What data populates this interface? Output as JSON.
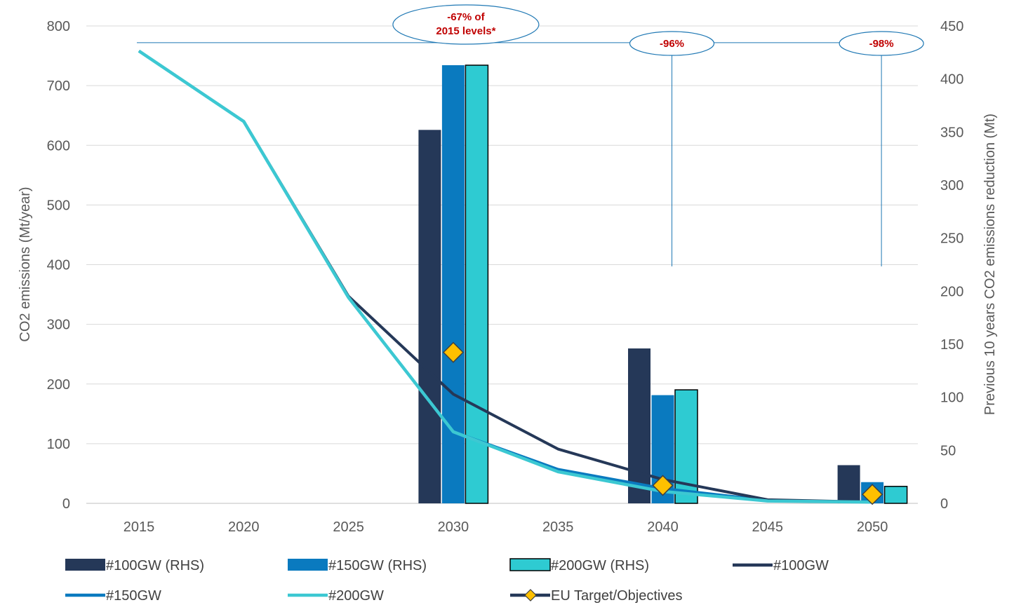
{
  "chart_data": {
    "type": "bar+line",
    "title": "",
    "x": [
      2015,
      2020,
      2025,
      2030,
      2035,
      2040,
      2045,
      2050
    ],
    "x_ticks": [
      "2015",
      "2020",
      "2025",
      "2030",
      "2035",
      "2040",
      "2045",
      "2050"
    ],
    "ylabel": "CO2 emissions (Mt/year)",
    "ylim": [
      0,
      800
    ],
    "y_ticks": [
      "0",
      "100",
      "200",
      "300",
      "400",
      "500",
      "600",
      "700",
      "800"
    ],
    "y2label": "Previous 10 years CO2 emissions reduction (Mt)",
    "y2lim": [
      0,
      450
    ],
    "y2_ticks": [
      "0",
      "50",
      "100",
      "150",
      "200",
      "250",
      "300",
      "350",
      "400",
      "450"
    ],
    "grid": true,
    "legend_position": "bottom",
    "bar_series": [
      {
        "name": "#100GW (RHS)",
        "axis": "right",
        "color": "#253858",
        "x": [
          2030,
          2040,
          2050
        ],
        "values": [
          352,
          146,
          36
        ]
      },
      {
        "name": "#150GW (RHS)",
        "axis": "right",
        "color": "#0a7abf",
        "x": [
          2030,
          2040,
          2050
        ],
        "values": [
          413,
          102,
          20
        ]
      },
      {
        "name": "#200GW (RHS)",
        "axis": "right",
        "color": "#2ecbd2",
        "outline": "#000000",
        "x": [
          2030,
          2040,
          2050
        ],
        "values": [
          413,
          107,
          16
        ]
      }
    ],
    "line_series": [
      {
        "name": "#100GW",
        "axis": "left",
        "color": "#253858",
        "values": [
          758,
          640,
          347,
          183,
          91,
          40,
          6,
          2
        ]
      },
      {
        "name": "#150GW",
        "axis": "left",
        "color": "#0a7abf",
        "values": [
          758,
          640,
          345,
          120,
          57,
          25,
          5,
          2
        ]
      },
      {
        "name": "#200GW",
        "axis": "left",
        "color": "#3cc8d2",
        "values": [
          758,
          640,
          345,
          120,
          53,
          20,
          4,
          2
        ]
      }
    ],
    "markers": {
      "name": "EU Target/Objectives",
      "axis": "left",
      "color": "#ffc000",
      "points": [
        {
          "x": 2030,
          "y": 253
        },
        {
          "x": 2040,
          "y": 30
        },
        {
          "x": 2050,
          "y": 15
        }
      ]
    },
    "reference_line": {
      "axis": "left",
      "value": 772,
      "color": "#1f78b4"
    },
    "callouts": [
      {
        "x": 2030,
        "lines": [
          "-67% of",
          "2015 levels*"
        ]
      },
      {
        "x": 2040,
        "lines": [
          "-96%"
        ]
      },
      {
        "x": 2050,
        "lines": [
          "-98%"
        ]
      }
    ]
  }
}
